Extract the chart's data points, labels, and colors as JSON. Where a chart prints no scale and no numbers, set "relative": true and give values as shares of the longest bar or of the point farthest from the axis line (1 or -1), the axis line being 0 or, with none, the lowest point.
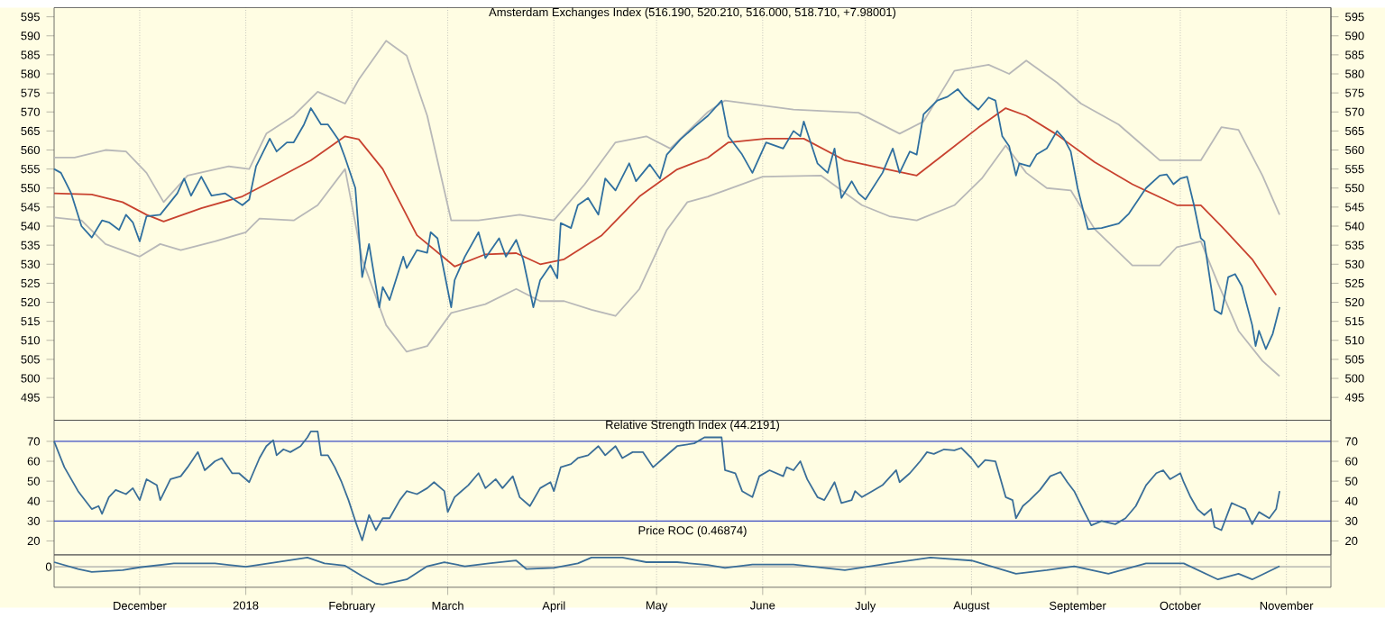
{
  "chart_data": [
    {
      "type": "line",
      "title": "Amsterdam Exchanges Index (516.190, 520.210, 516.000, 518.710, +7.98001)",
      "xlim": [
        "2017-11-06",
        "2018-11-14"
      ],
      "ylim": [
        489,
        597.4
      ],
      "y2lim": [
        489,
        597.4
      ],
      "tick_labels": "y",
      "grid": "x",
      "xticks": [
        {
          "value": "2017-12-01",
          "label": null
        },
        {
          "value": "2018-01-01",
          "label": null
        },
        {
          "value": "2018-02-01",
          "label": null
        },
        {
          "value": "2018-03-01",
          "label": null
        },
        {
          "value": "2018-04-01",
          "label": null
        },
        {
          "value": "2018-05-01",
          "label": null
        },
        {
          "value": "2018-06-01",
          "label": null
        },
        {
          "value": "2018-07-01",
          "label": null
        },
        {
          "value": "2018-08-01",
          "label": null
        },
        {
          "value": "2018-09-01",
          "label": null
        },
        {
          "value": "2018-10-01",
          "label": null
        },
        {
          "value": "2018-11-01",
          "label": null
        }
      ],
      "yticks": [
        495,
        500,
        505,
        510,
        515,
        520,
        525,
        530,
        535,
        540,
        545,
        550,
        555,
        560,
        565,
        570,
        575,
        580,
        585,
        590,
        595
      ],
      "y2ticks": [
        495,
        500,
        505,
        510,
        515,
        520,
        525,
        530,
        535,
        540,
        545,
        550,
        555,
        560,
        565,
        570,
        575,
        580,
        585,
        590,
        595
      ],
      "series": [
        {
          "color": "#b8b8b8",
          "x": [
            "2017-11-06",
            "2017-11-12",
            "2017-11-21",
            "2017-11-27",
            "2017-12-03",
            "2017-12-08",
            "2017-12-15",
            "2017-12-27",
            "2018-01-02",
            "2018-01-07",
            "2018-01-15",
            "2018-01-22",
            "2018-01-30",
            "2018-02-03",
            "2018-02-11",
            "2018-02-17",
            "2018-02-23",
            "2018-03-02",
            "2018-03-10",
            "2018-03-22",
            "2018-04-01",
            "2018-04-10",
            "2018-04-19",
            "2018-04-28",
            "2018-05-05",
            "2018-05-16",
            "2018-05-21",
            "2018-06-10",
            "2018-06-29",
            "2018-07-11",
            "2018-07-18",
            "2018-07-27",
            "2018-08-06",
            "2018-08-12",
            "2018-08-17",
            "2018-08-26",
            "2018-09-02",
            "2018-09-13",
            "2018-09-25",
            "2018-10-07",
            "2018-10-13",
            "2018-10-18",
            "2018-10-25",
            "2018-10-30"
          ],
          "values": [
            558,
            558,
            560,
            559.6,
            554,
            546.3,
            553.3,
            555.7,
            555,
            564.3,
            569,
            575.3,
            572.2,
            578.5,
            588.7,
            584.8,
            569,
            541.5,
            541.5,
            543,
            541.5,
            551,
            562,
            563.6,
            560.4,
            570,
            573,
            570.6,
            569.8,
            564.3,
            567.5,
            580.8,
            582.4,
            580,
            583.5,
            577.7,
            572.2,
            566.7,
            557.3,
            557.3,
            566,
            565.3,
            553.3,
            543
          ]
        },
        {
          "color": "#b8b8b8",
          "x": [
            "2017-11-06",
            "2017-11-14",
            "2017-11-21",
            "2017-12-01",
            "2017-12-07",
            "2017-12-13",
            "2017-12-23",
            "2018-01-01",
            "2018-01-05",
            "2018-01-15",
            "2018-01-22",
            "2018-01-30",
            "2018-02-04",
            "2018-02-11",
            "2018-02-17",
            "2018-02-23",
            "2018-03-02",
            "2018-03-12",
            "2018-03-21",
            "2018-03-28",
            "2018-04-04",
            "2018-04-12",
            "2018-04-19",
            "2018-04-26",
            "2018-05-04",
            "2018-05-10",
            "2018-05-16",
            "2018-05-21",
            "2018-06-01",
            "2018-06-18",
            "2018-06-30",
            "2018-07-08",
            "2018-07-16",
            "2018-07-27",
            "2018-08-04",
            "2018-08-11",
            "2018-08-17",
            "2018-08-23",
            "2018-08-30",
            "2018-09-06",
            "2018-09-17",
            "2018-09-25",
            "2018-09-30",
            "2018-10-07",
            "2018-10-12",
            "2018-10-18",
            "2018-10-25",
            "2018-10-30"
          ],
          "values": [
            542.3,
            541.5,
            535.3,
            532,
            535.3,
            533.7,
            536,
            538.4,
            542,
            541.5,
            545.5,
            555,
            531.3,
            514,
            507,
            508.5,
            517.2,
            519.5,
            523.5,
            520.3,
            520.3,
            518,
            516.4,
            523.5,
            539,
            546.3,
            547.8,
            549.4,
            553,
            553.3,
            545.5,
            542.6,
            541.5,
            545.5,
            552.5,
            561.2,
            554,
            550,
            549.4,
            539.2,
            529.7,
            529.7,
            534.5,
            536,
            525,
            512.5,
            504.6,
            500.6
          ]
        },
        {
          "color": "#c8422f",
          "x": [
            "2017-11-06",
            "2017-11-17",
            "2017-11-26",
            "2017-12-03",
            "2017-12-08",
            "2017-12-19",
            "2017-12-31",
            "2018-01-10",
            "2018-01-20",
            "2018-01-30",
            "2018-02-03",
            "2018-02-10",
            "2018-02-20",
            "2018-03-03",
            "2018-03-12",
            "2018-03-21",
            "2018-03-28",
            "2018-04-04",
            "2018-04-15",
            "2018-04-26",
            "2018-05-07",
            "2018-05-16",
            "2018-05-22",
            "2018-06-02",
            "2018-06-13",
            "2018-06-25",
            "2018-07-06",
            "2018-07-16",
            "2018-07-25",
            "2018-08-03",
            "2018-08-11",
            "2018-08-17",
            "2018-08-26",
            "2018-09-06",
            "2018-09-17",
            "2018-09-30",
            "2018-10-07",
            "2018-10-13",
            "2018-10-22",
            "2018-10-29"
          ],
          "values": [
            548.6,
            548.3,
            546.3,
            543,
            541.2,
            544.7,
            547.8,
            552.5,
            557.3,
            563.6,
            562.8,
            555,
            537.6,
            529.4,
            532.6,
            532.9,
            530,
            531.3,
            537.6,
            547.8,
            554.9,
            558,
            562,
            563,
            563,
            557.3,
            555.2,
            553.3,
            559.6,
            565.9,
            571,
            569,
            564,
            556.8,
            551,
            545.5,
            545.5,
            540,
            531.3,
            521.9
          ]
        },
        {
          "color": "#2f6f9f",
          "x": [
            "2017-11-06",
            "2017-11-08",
            "2017-11-11",
            "2017-11-14",
            "2017-11-17",
            "2017-11-20",
            "2017-11-22",
            "2017-11-25",
            "2017-11-27",
            "2017-11-29",
            "2017-12-01",
            "2017-12-03",
            "2017-12-07",
            "2017-12-12",
            "2017-12-14",
            "2017-12-16",
            "2017-12-19",
            "2017-12-22",
            "2017-12-26",
            "2017-12-31",
            "2018-01-02",
            "2018-01-04",
            "2018-01-08",
            "2018-01-10",
            "2018-01-13",
            "2018-01-15",
            "2018-01-18",
            "2018-01-20",
            "2018-01-23",
            "2018-01-25",
            "2018-01-28",
            "2018-01-30",
            "2018-02-02",
            "2018-02-04",
            "2018-02-06",
            "2018-02-09",
            "2018-02-10",
            "2018-02-12",
            "2018-02-16",
            "2018-02-17",
            "2018-02-20",
            "2018-02-23",
            "2018-02-24",
            "2018-02-26",
            "2018-03-02",
            "2018-03-03",
            "2018-03-06",
            "2018-03-10",
            "2018-03-12",
            "2018-03-16",
            "2018-03-18",
            "2018-03-21",
            "2018-03-23",
            "2018-03-26",
            "2018-03-28",
            "2018-03-31",
            "2018-04-02",
            "2018-04-03",
            "2018-04-06",
            "2018-04-08",
            "2018-04-11",
            "2018-04-14",
            "2018-04-16",
            "2018-04-19",
            "2018-04-23",
            "2018-04-25",
            "2018-04-29",
            "2018-05-02",
            "2018-05-04",
            "2018-05-08",
            "2018-05-12",
            "2018-05-16",
            "2018-05-20",
            "2018-05-22",
            "2018-05-26",
            "2018-05-29",
            "2018-06-02",
            "2018-06-07",
            "2018-06-10",
            "2018-06-12",
            "2018-06-13",
            "2018-06-17",
            "2018-06-20",
            "2018-06-22",
            "2018-06-24",
            "2018-06-27",
            "2018-06-29",
            "2018-07-01",
            "2018-07-06",
            "2018-07-09",
            "2018-07-11",
            "2018-07-14",
            "2018-07-16",
            "2018-07-18",
            "2018-07-22",
            "2018-07-25",
            "2018-07-28",
            "2018-07-30",
            "2018-08-03",
            "2018-08-06",
            "2018-08-08",
            "2018-08-10",
            "2018-08-12",
            "2018-08-14",
            "2018-08-15",
            "2018-08-18",
            "2018-08-20",
            "2018-08-23",
            "2018-08-26",
            "2018-08-28",
            "2018-08-30",
            "2018-09-01",
            "2018-09-04",
            "2018-09-08",
            "2018-09-13",
            "2018-09-16",
            "2018-09-21",
            "2018-09-25",
            "2018-09-27",
            "2018-09-29",
            "2018-10-01",
            "2018-10-03",
            "2018-10-05",
            "2018-10-07",
            "2018-10-08",
            "2018-10-11",
            "2018-10-13",
            "2018-10-15",
            "2018-10-17",
            "2018-10-19",
            "2018-10-22",
            "2018-10-23",
            "2018-10-24",
            "2018-10-26",
            "2018-10-28",
            "2018-10-30"
          ],
          "values": [
            555,
            554,
            548.6,
            540,
            537,
            541.5,
            541,
            539,
            543,
            541,
            536,
            542.6,
            543,
            548.6,
            552.5,
            548,
            553,
            548,
            548.6,
            545.5,
            547,
            555.7,
            563,
            559.6,
            562,
            562,
            566.7,
            571,
            566.7,
            566.7,
            562.8,
            558,
            550,
            526.6,
            535.3,
            518.7,
            524,
            520.6,
            532,
            529,
            533.7,
            533,
            538.4,
            536.8,
            518.7,
            525.8,
            532,
            538.4,
            531.6,
            536.8,
            532,
            536.4,
            531.3,
            518.7,
            525.8,
            529.7,
            526.3,
            540.8,
            539.5,
            545.5,
            547.4,
            543,
            552.5,
            549.4,
            556.5,
            551.8,
            556.2,
            552.5,
            558.8,
            562.8,
            566,
            569,
            573,
            563.6,
            558.8,
            554,
            562,
            560.4,
            565,
            563.6,
            567.5,
            556.5,
            554,
            560.4,
            547.4,
            551.8,
            548.6,
            547,
            554,
            560.4,
            554,
            559.6,
            558.8,
            569.4,
            573,
            574,
            576,
            573.8,
            570.6,
            573.8,
            573,
            563.6,
            561,
            553.3,
            556.5,
            555.7,
            558.8,
            560.4,
            565,
            563,
            559.6,
            550,
            539.2,
            539.5,
            540.7,
            543.3,
            550,
            553.3,
            553.6,
            551,
            552.5,
            553,
            545.5,
            536.8,
            536,
            518,
            516.9,
            526.6,
            527.4,
            524.2,
            514,
            508.5,
            512.5,
            507.7,
            511.7,
            518.7
          ]
        }
      ]
    },
    {
      "type": "line",
      "title": "Relative Strength Index (44.2191)",
      "xlim": [
        "2017-11-06",
        "2018-11-14"
      ],
      "ylim": [
        13,
        80.6
      ],
      "y2lim": [
        13,
        80.6
      ],
      "tick_labels": "y",
      "grid": "x",
      "xticks": [
        {
          "value": "2017-12-01",
          "label": null
        },
        {
          "value": "2018-01-01",
          "label": null
        },
        {
          "value": "2018-02-01",
          "label": null
        },
        {
          "value": "2018-03-01",
          "label": null
        },
        {
          "value": "2018-04-01",
          "label": null
        },
        {
          "value": "2018-05-01",
          "label": null
        },
        {
          "value": "2018-06-01",
          "label": null
        },
        {
          "value": "2018-07-01",
          "label": null
        },
        {
          "value": "2018-08-01",
          "label": null
        },
        {
          "value": "2018-09-01",
          "label": null
        },
        {
          "value": "2018-10-01",
          "label": null
        },
        {
          "value": "2018-11-01",
          "label": null
        }
      ],
      "yticks": [
        20,
        30,
        40,
        50,
        60,
        70
      ],
      "y2ticks": [
        20,
        30,
        40,
        50,
        60,
        70
      ],
      "ref_lines": [
        {
          "axis": "y",
          "value": 30,
          "color": "#3c4cc4"
        },
        {
          "axis": "y",
          "value": 70,
          "color": "#3c4cc4"
        }
      ],
      "series": [
        {
          "color": "#3a6e98",
          "x": [
            "2017-11-06",
            "2017-11-09",
            "2017-11-13",
            "2017-11-17",
            "2017-11-19",
            "2017-11-20",
            "2017-11-22",
            "2017-11-24",
            "2017-11-27",
            "2017-11-29",
            "2017-12-01",
            "2017-12-03",
            "2017-12-06",
            "2017-12-07",
            "2017-12-10",
            "2017-12-13",
            "2017-12-15",
            "2017-12-18",
            "2017-12-20",
            "2017-12-23",
            "2017-12-25",
            "2017-12-28",
            "2017-12-30",
            "2018-01-02",
            "2018-01-05",
            "2018-01-07",
            "2018-01-09",
            "2018-01-10",
            "2018-01-12",
            "2018-01-14",
            "2018-01-17",
            "2018-01-19",
            "2018-01-20",
            "2018-01-22",
            "2018-01-23",
            "2018-01-25",
            "2018-01-27",
            "2018-01-29",
            "2018-01-31",
            "2018-02-02",
            "2018-02-04",
            "2018-02-06",
            "2018-02-08",
            "2018-02-10",
            "2018-02-12",
            "2018-02-15",
            "2018-02-17",
            "2018-02-20",
            "2018-02-23",
            "2018-02-25",
            "2018-02-28",
            "2018-03-01",
            "2018-03-03",
            "2018-03-07",
            "2018-03-10",
            "2018-03-12",
            "2018-03-15",
            "2018-03-17",
            "2018-03-20",
            "2018-03-22",
            "2018-03-25",
            "2018-03-28",
            "2018-03-31",
            "2018-04-01",
            "2018-04-03",
            "2018-04-06",
            "2018-04-08",
            "2018-04-11",
            "2018-04-14",
            "2018-04-16",
            "2018-04-19",
            "2018-04-21",
            "2018-04-24",
            "2018-04-27",
            "2018-04-30",
            "2018-05-03",
            "2018-05-07",
            "2018-05-12",
            "2018-05-15",
            "2018-05-18",
            "2018-05-20",
            "2018-05-21",
            "2018-05-24",
            "2018-05-26",
            "2018-05-29",
            "2018-05-31",
            "2018-06-03",
            "2018-06-07",
            "2018-06-08",
            "2018-06-10",
            "2018-06-12",
            "2018-06-14",
            "2018-06-17",
            "2018-06-19",
            "2018-06-22",
            "2018-06-24",
            "2018-06-27",
            "2018-06-28",
            "2018-06-30",
            "2018-07-03",
            "2018-07-06",
            "2018-07-10",
            "2018-07-11",
            "2018-07-14",
            "2018-07-17",
            "2018-07-19",
            "2018-07-21",
            "2018-07-24",
            "2018-07-27",
            "2018-07-29",
            "2018-08-01",
            "2018-08-03",
            "2018-08-05",
            "2018-08-08",
            "2018-08-09",
            "2018-08-11",
            "2018-08-13",
            "2018-08-14",
            "2018-08-16",
            "2018-08-18",
            "2018-08-21",
            "2018-08-24",
            "2018-08-27",
            "2018-08-29",
            "2018-08-31",
            "2018-09-03",
            "2018-09-05",
            "2018-09-08",
            "2018-09-12",
            "2018-09-15",
            "2018-09-18",
            "2018-09-21",
            "2018-09-24",
            "2018-09-26",
            "2018-09-28",
            "2018-10-01",
            "2018-10-02",
            "2018-10-04",
            "2018-10-06",
            "2018-10-08",
            "2018-10-10",
            "2018-10-11",
            "2018-10-13",
            "2018-10-16",
            "2018-10-18",
            "2018-10-20",
            "2018-10-22",
            "2018-10-24",
            "2018-10-27",
            "2018-10-29",
            "2018-10-30"
          ],
          "values": [
            70,
            57,
            45,
            36,
            37.5,
            33.6,
            42,
            45.6,
            43.5,
            46.5,
            40.5,
            51,
            48,
            40.5,
            51,
            52.5,
            57,
            64.6,
            55.5,
            60,
            61.6,
            54,
            54,
            49.5,
            61.6,
            67.6,
            70.6,
            63,
            66,
            64.6,
            67.6,
            72,
            75,
            75,
            63,
            63,
            57,
            49.5,
            40.5,
            30,
            20.3,
            33,
            25.4,
            31.4,
            31.4,
            40.5,
            45,
            43.5,
            46.5,
            49.5,
            45,
            34.5,
            42,
            48,
            54,
            46.5,
            51,
            46.5,
            52.5,
            42,
            37.5,
            46.5,
            49.5,
            45,
            57,
            58.6,
            61.6,
            63,
            67.6,
            63,
            67.6,
            61.6,
            64.6,
            64.6,
            57,
            61.6,
            67.6,
            69,
            72,
            72,
            72,
            55.5,
            54,
            45,
            42,
            52.5,
            55.5,
            52.5,
            57,
            55.5,
            60,
            51,
            42,
            40.5,
            49.5,
            39,
            40.5,
            45,
            42,
            45,
            48,
            55.5,
            49.5,
            54,
            60,
            64.6,
            63.7,
            66,
            65.5,
            66.7,
            61.6,
            57,
            60.6,
            60,
            54,
            42,
            40.5,
            31.4,
            37.5,
            40.5,
            45.6,
            52.5,
            54.6,
            49.5,
            45,
            34.5,
            27.8,
            30,
            28.4,
            31.4,
            37.5,
            48,
            54,
            55.5,
            51,
            54,
            49.5,
            42,
            36,
            33,
            36,
            27,
            25.4,
            39,
            37.5,
            36,
            28.4,
            34.5,
            31.4,
            36,
            45
          ]
        }
      ]
    },
    {
      "type": "line",
      "title": "Price ROC (0.46874)",
      "relative": true,
      "xlim": [
        "2017-11-06",
        "2018-11-14"
      ],
      "tick_labels": "x",
      "grid": "x",
      "xticks": [
        {
          "value": "2017-12-01",
          "label": "December"
        },
        {
          "value": "2018-01-01",
          "label": "2018"
        },
        {
          "value": "2018-02-01",
          "label": "February"
        },
        {
          "value": "2018-03-01",
          "label": "March"
        },
        {
          "value": "2018-04-01",
          "label": "April"
        },
        {
          "value": "2018-05-01",
          "label": "May"
        },
        {
          "value": "2018-06-01",
          "label": "June"
        },
        {
          "value": "2018-07-01",
          "label": "July"
        },
        {
          "value": "2018-08-01",
          "label": "August"
        },
        {
          "value": "2018-09-01",
          "label": "September"
        },
        {
          "value": "2018-10-01",
          "label": "October"
        },
        {
          "value": "2018-11-01",
          "label": "November"
        }
      ],
      "ref_lines": [
        {
          "axis": "y",
          "value": 0,
          "label": "0",
          "color": "#a8a8a8"
        }
      ],
      "series": [
        {
          "color": "#3a6e98",
          "x": [
            "2017-11-06",
            "2017-11-13",
            "2017-11-17",
            "2017-11-26",
            "2017-12-01",
            "2017-12-11",
            "2017-12-23",
            "2018-01-01",
            "2018-01-09",
            "2018-01-19",
            "2018-01-24",
            "2018-01-30",
            "2018-02-04",
            "2018-02-08",
            "2018-02-10",
            "2018-02-17",
            "2018-02-23",
            "2018-02-28",
            "2018-03-06",
            "2018-03-13",
            "2018-03-21",
            "2018-03-24",
            "2018-04-01",
            "2018-04-08",
            "2018-04-12",
            "2018-04-21",
            "2018-04-28",
            "2018-05-07",
            "2018-05-16",
            "2018-05-21",
            "2018-05-29",
            "2018-06-10",
            "2018-06-25",
            "2018-07-08",
            "2018-07-20",
            "2018-08-01",
            "2018-08-14",
            "2018-08-23",
            "2018-08-31",
            "2018-09-10",
            "2018-09-21",
            "2018-10-02",
            "2018-10-12",
            "2018-10-18",
            "2018-10-22",
            "2018-10-30"
          ],
          "values": [
            0.26,
            -0.13,
            -0.29,
            -0.19,
            -0.03,
            0.19,
            0.19,
            0,
            0.23,
            0.52,
            0.19,
            0.06,
            -0.52,
            -0.94,
            -1,
            -0.71,
            0.03,
            0.26,
            0.03,
            0.19,
            0.35,
            -0.13,
            -0.06,
            0.19,
            0.52,
            0.52,
            0.26,
            0.26,
            0.1,
            -0.06,
            0.13,
            0.13,
            -0.19,
            0.19,
            0.52,
            0.35,
            -0.39,
            -0.19,
            0.03,
            -0.39,
            0.19,
            0.19,
            -0.71,
            -0.39,
            -0.71,
            0.03
          ]
        }
      ]
    }
  ]
}
